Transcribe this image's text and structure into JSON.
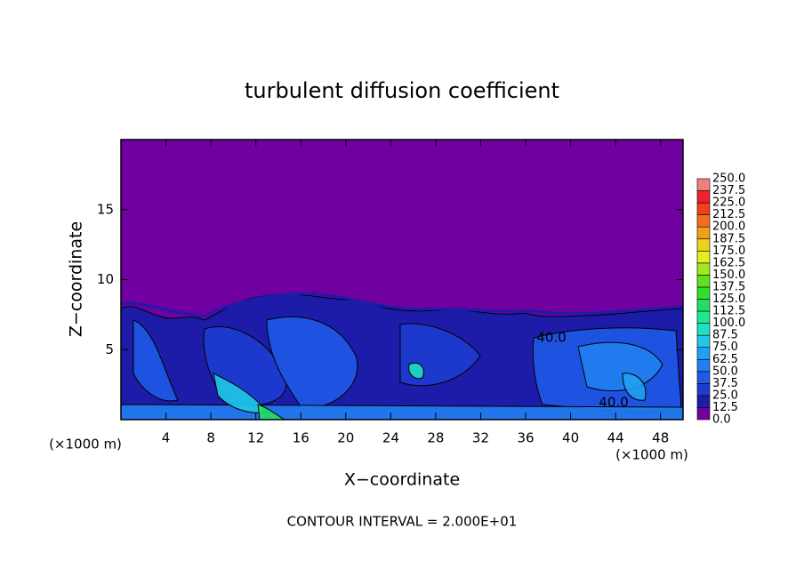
{
  "chart_data": {
    "type": "contour",
    "title": "turbulent diffusion coefficient",
    "xlabel": "X−coordinate",
    "ylabel": "Z−coordinate",
    "xunit_left": "(×1000 m)",
    "xunit_right": "(×1000 m)",
    "note": "CONTOUR INTERVAL = 2.000E+01",
    "xlim": [
      0,
      50
    ],
    "ylim": [
      0,
      20
    ],
    "xticks": [
      4,
      8,
      12,
      16,
      20,
      24,
      28,
      32,
      36,
      40,
      44,
      48
    ],
    "yticks": [
      5,
      10,
      15
    ],
    "contour_labels": [
      {
        "value": 40,
        "label": "40.0"
      },
      {
        "value": 40,
        "label": "40.0"
      }
    ],
    "colorbar": {
      "levels": [
        {
          "value": 0,
          "label": "0.0"
        },
        {
          "value": 12.5,
          "label": "12.5"
        },
        {
          "value": 25,
          "label": "25.0"
        },
        {
          "value": 37.5,
          "label": "37.5"
        },
        {
          "value": 50,
          "label": "50.0"
        },
        {
          "value": 62.5,
          "label": "62.5"
        },
        {
          "value": 75,
          "label": "75.0"
        },
        {
          "value": 87.5,
          "label": "87.5"
        },
        {
          "value": 100,
          "label": "100.0"
        },
        {
          "value": 112.5,
          "label": "112.5"
        },
        {
          "value": 125,
          "label": "125.0"
        },
        {
          "value": 137.5,
          "label": "137.5"
        },
        {
          "value": 150,
          "label": "150.0"
        },
        {
          "value": 162.5,
          "label": "162.5"
        },
        {
          "value": 175,
          "label": "175.0"
        },
        {
          "value": 187.5,
          "label": "187.5"
        },
        {
          "value": 200,
          "label": "200.0"
        },
        {
          "value": 212.5,
          "label": "212.5"
        },
        {
          "value": 225,
          "label": "225.0"
        },
        {
          "value": 237.5,
          "label": "237.5"
        },
        {
          "value": 250,
          "label": "250.0"
        }
      ],
      "colors": [
        "#7000a0",
        "#1c1ca8",
        "#1e3cd0",
        "#1f5ae8",
        "#2080f0",
        "#20a0f0",
        "#20c8e8",
        "#20e0c0",
        "#20e890",
        "#20e060",
        "#30e030",
        "#60e020",
        "#a0e820",
        "#e0f020",
        "#f0d020",
        "#f0a020",
        "#f07020",
        "#f04020",
        "#f02030",
        "#f08080"
      ]
    }
  }
}
